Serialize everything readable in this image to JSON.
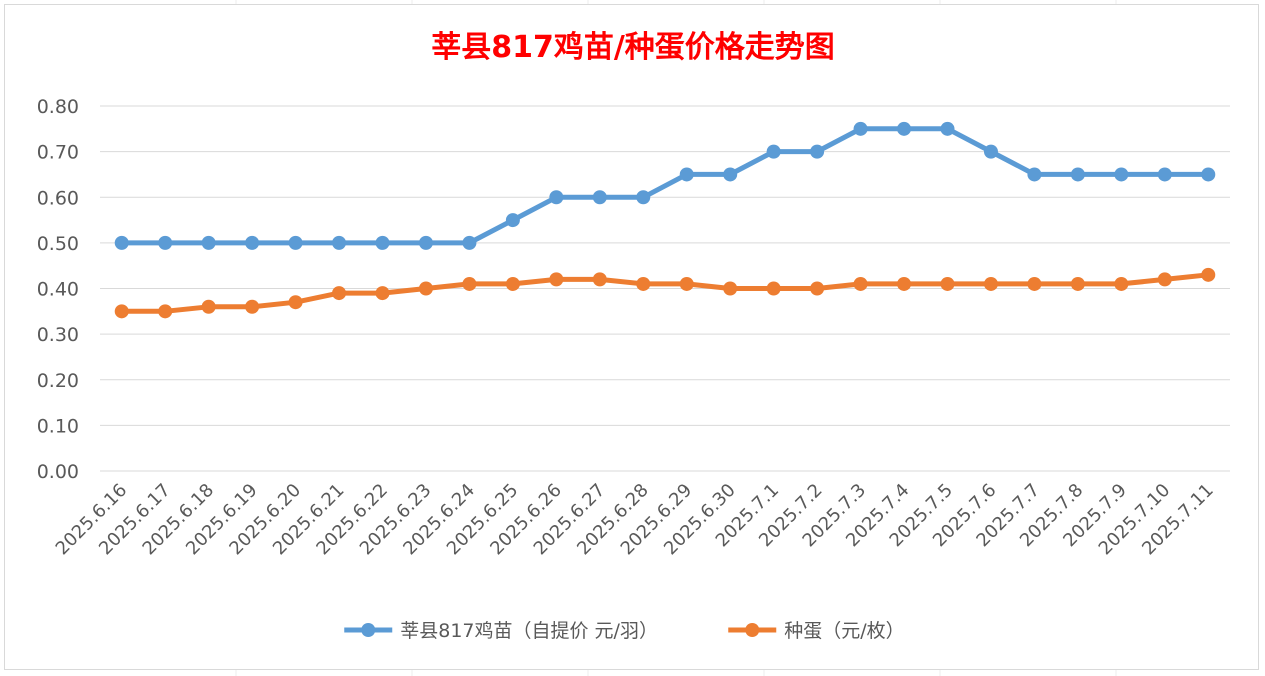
{
  "chart_data": {
    "type": "line",
    "title": "莘县817鸡苗/种蛋价格走势图",
    "xlabel": "",
    "ylabel": "",
    "ylim": [
      0,
      0.8
    ],
    "ytick_step": 0.1,
    "ytick_labels": [
      "0.00",
      "0.10",
      "0.20",
      "0.30",
      "0.40",
      "0.50",
      "0.60",
      "0.70",
      "0.80"
    ],
    "grid": true,
    "legend_position": "bottom",
    "categories": [
      "2025.6.16",
      "2025.6.17",
      "2025.6.18",
      "2025.6.19",
      "2025.6.20",
      "2025.6.21",
      "2025.6.22",
      "2025.6.23",
      "2025.6.24",
      "2025.6.25",
      "2025.6.26",
      "2025.6.27",
      "2025.6.28",
      "2025.6.29",
      "2025.6.30",
      "2025.7.1",
      "2025.7.2",
      "2025.7.3",
      "2025.7.4",
      "2025.7.5",
      "2025.7.6",
      "2025.7.7",
      "2025.7.8",
      "2025.7.9",
      "2025.7.10",
      "2025.7.11"
    ],
    "series": [
      {
        "name": "莘县817鸡苗（自提价 元/羽）",
        "color": "#5B9BD5",
        "values": [
          0.5,
          0.5,
          0.5,
          0.5,
          0.5,
          0.5,
          0.5,
          0.5,
          0.5,
          0.55,
          0.6,
          0.6,
          0.6,
          0.65,
          0.65,
          0.7,
          0.7,
          0.75,
          0.75,
          0.75,
          0.7,
          0.65,
          0.65,
          0.65,
          0.65,
          0.65
        ]
      },
      {
        "name": "种蛋（元/枚）",
        "color": "#ED7D31",
        "values": [
          0.35,
          0.35,
          0.36,
          0.36,
          0.37,
          0.39,
          0.39,
          0.4,
          0.41,
          0.41,
          0.42,
          0.42,
          0.41,
          0.41,
          0.4,
          0.4,
          0.4,
          0.41,
          0.41,
          0.41,
          0.41,
          0.41,
          0.41,
          0.41,
          0.42,
          0.43
        ]
      }
    ]
  },
  "colors": {
    "title": "#FF0000",
    "gridline": "#D9D9D9",
    "axis_text": "#595959"
  }
}
